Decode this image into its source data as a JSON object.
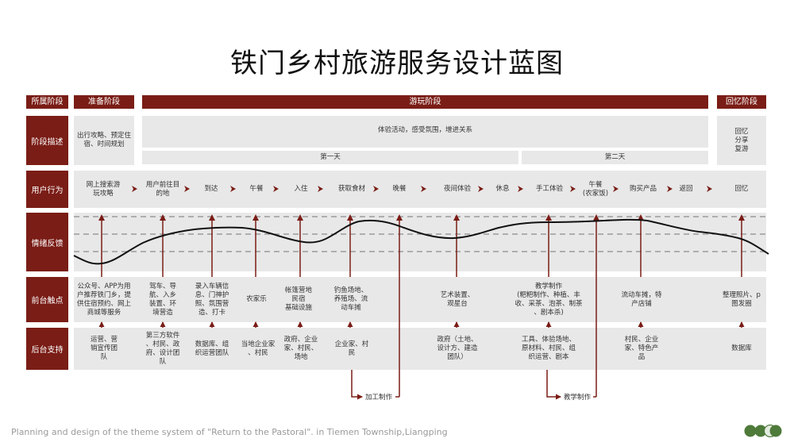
{
  "title": "铁门乡村旅游服务设计蓝图",
  "headers": {
    "stage_label": "所属阶段",
    "prepare": "准备阶段",
    "travel": "游玩阶段",
    "memory": "回忆阶段"
  },
  "row_labels": {
    "desc": "阶段描述",
    "behavior": "用户行为",
    "emotion": "情绪反馈",
    "front": "前台触点",
    "back": "后台支持"
  },
  "desc": {
    "prepare": "出行攻略、预定住\n宿、时间规划",
    "travel": "体验活动，感受氛围，增进关系",
    "memory": "回忆\n分享\n复游",
    "day1": "第一天",
    "day2": "第二天"
  },
  "behaviors": [
    "网上搜索游\n玩攻略",
    "用户前往目\n的地",
    "到达",
    "午餐",
    "入住",
    "获取食材",
    "晚餐",
    "夜间体验",
    "休息",
    "手工体验",
    "午餐\n(农家饭)",
    "购买产品",
    "返回",
    "回忆"
  ],
  "front": [
    "公众号、APP为用\n户推荐铁门乡，提\n供住宿预约、网上\n商城等服务",
    "驾车、导\n航、入乡\n装置、环\n境营造",
    "录入车辆信\n息、门神护\n照、氛围营\n造、打卡",
    "农家乐",
    "帐篷营地\n民宿\n基础设施",
    "钓鱼场地、\n养殖场、流\n动车摊",
    "艺术装置、\n观星台",
    "教学制作\n(粑粑制作、种植、丰\n收、采茶、泡茶、制茶\n、剧本杀)",
    "流动车摊，特\n产店铺",
    "整理照片、p\n图发圈"
  ],
  "back": [
    "运营、营\n销宣传团\n队",
    "第三方软件\n、村民、政\n府、设计团\n队",
    "数据库、组\n织运营团队",
    "当地企业家\n、村民",
    "政府、企业\n家、村民、\n场地",
    "企业家、村\n民",
    "政府（土地、\n设计方、建造\n团队）",
    "工具、体验场地、\n原材料、村民、组\n织运营、剧本",
    "村民、企业\n家、特色产\n品",
    "数据库"
  ],
  "branches": {
    "process": "加工制作",
    "teach": "教学制作"
  },
  "footer": "Planning and design of the theme system of \"Return to the Pastoral\". in Tiemen Township,Liangping",
  "colors": {
    "brand": "#7a1d16",
    "band": "#e8e8e8",
    "logo_green": "#4e7a3a",
    "logo_light": "#e3ece0"
  }
}
